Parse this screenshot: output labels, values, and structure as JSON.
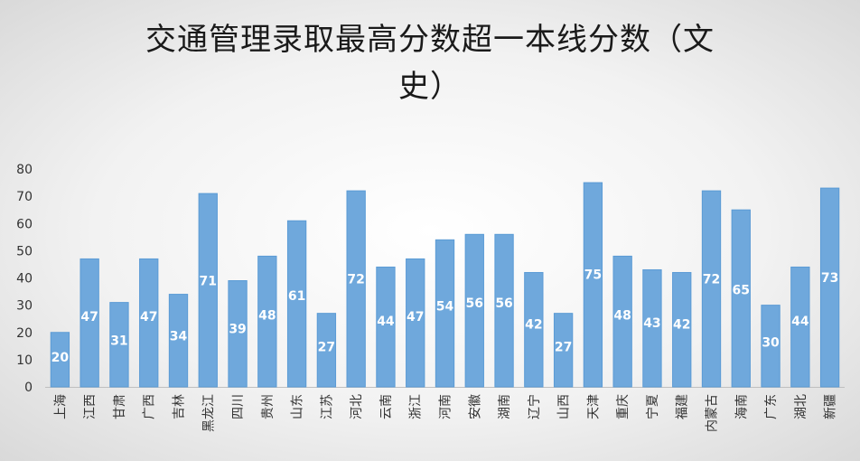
{
  "chart_data": {
    "type": "bar",
    "title_line1": "交通管理录取最高分数超一本线分数（文",
    "title_line2": "史）",
    "categories": [
      "上海",
      "江西",
      "甘肃",
      "广西",
      "吉林",
      "黑龙江",
      "四川",
      "贵州",
      "山东",
      "江苏",
      "河北",
      "云南",
      "浙江",
      "河南",
      "安徽",
      "湖南",
      "辽宁",
      "山西",
      "天津",
      "重庆",
      "宁夏",
      "福建",
      "内蒙古",
      "海南",
      "广东",
      "湖北",
      "新疆"
    ],
    "values": [
      20,
      47,
      31,
      47,
      34,
      71,
      39,
      48,
      61,
      27,
      72,
      44,
      47,
      54,
      56,
      56,
      42,
      27,
      75,
      48,
      43,
      42,
      72,
      65,
      30,
      44,
      73
    ],
    "ylim": [
      0,
      80
    ],
    "yticks": [
      0,
      10,
      20,
      30,
      40,
      50,
      60,
      70,
      80
    ],
    "grid": false,
    "legend": "none",
    "bar_color": "#6fa8dc",
    "bar_border": "#5b9bd5"
  }
}
